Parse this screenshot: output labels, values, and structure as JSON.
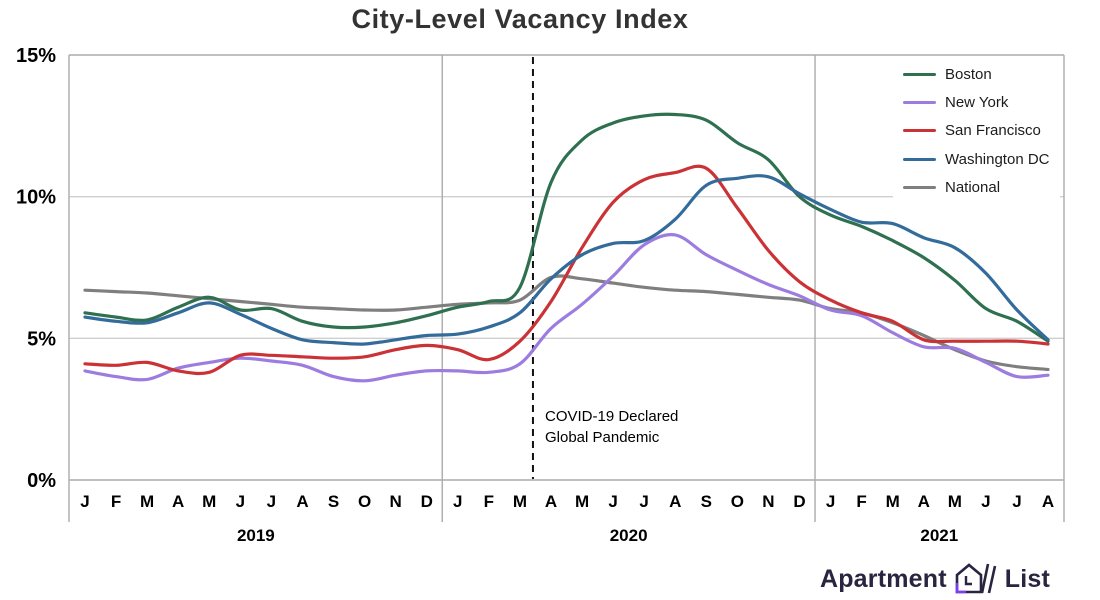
{
  "header": {
    "title": "City-Level Vacancy Index"
  },
  "y_axis": {
    "ticks": [
      {
        "label": "15%",
        "value": 15
      },
      {
        "label": "10%",
        "value": 10
      },
      {
        "label": "5%",
        "value": 5
      },
      {
        "label": "0%",
        "value": 0
      }
    ]
  },
  "x_axis": {
    "years": [
      {
        "label": "2019",
        "months": [
          "J",
          "F",
          "M",
          "A",
          "M",
          "J",
          "J",
          "A",
          "S",
          "O",
          "N",
          "D"
        ]
      },
      {
        "label": "2020",
        "months": [
          "J",
          "F",
          "M",
          "A",
          "M",
          "J",
          "J",
          "A",
          "S",
          "O",
          "N",
          "D"
        ]
      },
      {
        "label": "2021",
        "months": [
          "J",
          "F",
          "M",
          "A",
          "M",
          "J",
          "J",
          "A"
        ]
      }
    ]
  },
  "annotation": {
    "line1": "COVID-19 Declared",
    "line2": "Global Pandemic",
    "month_position": 14.42
  },
  "logo": {
    "brand_left": "Apartment",
    "brand_right": "List",
    "accent_color": "#7b3ff2",
    "text_color": "#29243f"
  },
  "chart_data": {
    "type": "line",
    "title": "City-Level Vacancy Index",
    "x_start": "Jan 2019",
    "x_end": "Aug 2021",
    "categories": [
      "J",
      "F",
      "M",
      "A",
      "M",
      "J",
      "J",
      "A",
      "S",
      "O",
      "N",
      "D",
      "J",
      "F",
      "M",
      "A",
      "M",
      "J",
      "J",
      "A",
      "S",
      "O",
      "N",
      "D",
      "J",
      "F",
      "M",
      "A",
      "M",
      "J",
      "J",
      "A"
    ],
    "ylim": [
      0,
      15
    ],
    "grid": "horizontal",
    "legend_position": "top-right",
    "series": [
      {
        "name": "Boston",
        "color": "#2e7050",
        "values": [
          5.9,
          5.75,
          5.65,
          6.1,
          6.45,
          6.0,
          6.05,
          5.6,
          5.4,
          5.4,
          5.55,
          5.8,
          6.1,
          6.3,
          6.8,
          10.5,
          12.0,
          12.6,
          12.85,
          12.9,
          12.7,
          11.9,
          11.3,
          10.0,
          9.35,
          8.95,
          8.45,
          7.85,
          7.05,
          6.05,
          5.6,
          4.9
        ]
      },
      {
        "name": "New York",
        "color": "#9d7ce0",
        "values": [
          3.85,
          3.65,
          3.55,
          3.95,
          4.15,
          4.3,
          4.2,
          4.05,
          3.65,
          3.5,
          3.7,
          3.85,
          3.85,
          3.8,
          4.1,
          5.35,
          6.2,
          7.2,
          8.3,
          8.65,
          7.95,
          7.4,
          6.9,
          6.5,
          6.0,
          5.8,
          5.2,
          4.7,
          4.65,
          4.15,
          3.65,
          3.7
        ]
      },
      {
        "name": "San Francisco",
        "color": "#cb3236",
        "values": [
          4.1,
          4.05,
          4.15,
          3.85,
          3.8,
          4.4,
          4.4,
          4.35,
          4.3,
          4.35,
          4.6,
          4.75,
          4.6,
          4.25,
          4.9,
          6.3,
          8.2,
          9.8,
          10.6,
          10.85,
          11.0,
          9.6,
          8.1,
          7.0,
          6.35,
          5.9,
          5.6,
          4.95,
          4.9,
          4.9,
          4.9,
          4.8
        ]
      },
      {
        "name": "Washington DC",
        "color": "#336b9b",
        "values": [
          5.75,
          5.6,
          5.55,
          5.9,
          6.25,
          5.85,
          5.35,
          4.95,
          4.85,
          4.8,
          4.95,
          5.1,
          5.15,
          5.4,
          5.9,
          7.1,
          7.95,
          8.35,
          8.45,
          9.2,
          10.4,
          10.65,
          10.7,
          10.1,
          9.55,
          9.1,
          9.05,
          8.55,
          8.2,
          7.3,
          6.0,
          4.95
        ]
      },
      {
        "name": "National",
        "color": "#7f7f7f",
        "values": [
          6.7,
          6.65,
          6.6,
          6.5,
          6.4,
          6.3,
          6.2,
          6.1,
          6.05,
          6.0,
          6.0,
          6.1,
          6.2,
          6.25,
          6.35,
          7.15,
          7.1,
          6.95,
          6.8,
          6.7,
          6.65,
          6.55,
          6.45,
          6.35,
          6.05,
          5.9,
          5.55,
          5.1,
          4.6,
          4.2,
          4.0,
          3.9
        ]
      }
    ]
  }
}
